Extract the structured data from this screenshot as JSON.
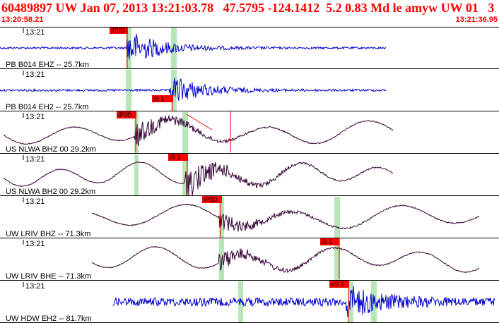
{
  "event": {
    "title": "60489897 UW Jan 07, 2013 13:21:03.78   47.5795 -124.1412  5.2 0.83 Md le amyw UW 01   3",
    "start_time": "13:20:58.21",
    "end_time": "13:21:36.95"
  },
  "colors": {
    "blue": "#0000cc",
    "purple": "#330033",
    "pick": "#ff0000",
    "window": "#b8e6b8",
    "header": "#ff0000"
  },
  "traces": [
    {
      "station": "PB B014 EHZ -- 25.7km",
      "tick": "13:21",
      "color": "blue",
      "pick": "iP0D"
    },
    {
      "station": "PB B014 EH2 -- 25.7km",
      "tick": "13:21",
      "color": "blue",
      "pick": "iS 1"
    },
    {
      "station": "US NLWA BHZ 00 29.2km",
      "tick": "13:21",
      "color": "purple",
      "pick": "iP0D"
    },
    {
      "station": "US NLWA BH2 00 29.2km",
      "tick": "13:21",
      "color": "purple",
      "pick": "iS 1"
    },
    {
      "station": "UW LRIV BHZ -- 71.3km",
      "tick": "13:21",
      "color": "purple",
      "pick": "iP0D"
    },
    {
      "station": "UW LRIV BHE -- 71.3km",
      "tick": "13:21",
      "color": "purple",
      "pick": "iS 1"
    },
    {
      "station": "UW HDW EH2 -- 81.7km",
      "tick": "13:21",
      "color": "blue",
      "pick": "eS 2"
    }
  ]
}
